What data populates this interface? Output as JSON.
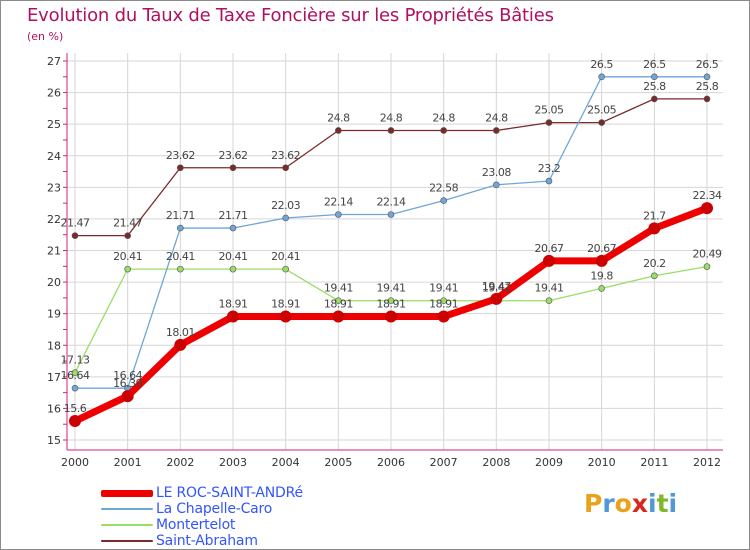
{
  "title": "Evolution du Taux de Taxe Foncière sur les Propriétés Bâties",
  "unit_label": "(en %)",
  "brand": {
    "letters": [
      "P",
      "r",
      "o",
      "x",
      "i",
      "t",
      "i"
    ],
    "colors": [
      "#e9a21b",
      "#4e9ad8",
      "#e9a21b",
      "#d6281e",
      "#4e9ad8",
      "#80b82a",
      "#4e9ad8"
    ]
  },
  "chart_data": {
    "type": "line",
    "title": "Evolution du Taux de Taxe Foncière sur les Propriétés Bâties",
    "ylabel": "(en %)",
    "xlabel": "",
    "x": [
      "2000",
      "2001",
      "2002",
      "2003",
      "2004",
      "2005",
      "2006",
      "2007",
      "2008",
      "2009",
      "2010",
      "2011",
      "2012"
    ],
    "ylim": [
      15,
      27
    ],
    "yticks": [
      "15",
      "16",
      "17",
      "18",
      "19",
      "20",
      "21",
      "22",
      "23",
      "24",
      "25",
      "26",
      "27"
    ],
    "grid": true,
    "series": [
      {
        "name": "LE ROC-SAINT-ANDRé",
        "color": "#ee0000",
        "width": 7,
        "marker": 6,
        "values": [
          15.6,
          16.39,
          18.01,
          18.91,
          18.91,
          18.91,
          18.91,
          18.91,
          19.47,
          20.67,
          20.67,
          21.7,
          22.34
        ],
        "labels": [
          "15.6",
          "16.39",
          "18.01",
          "18.91",
          "18.91",
          "18.91",
          "18.91",
          "18.91",
          "19.47",
          "20.67",
          "20.67",
          "21.7",
          "22.34"
        ]
      },
      {
        "name": "La Chapelle-Caro",
        "color": "#6fa6d8",
        "width": 1.3,
        "marker": 3,
        "values": [
          16.64,
          16.64,
          21.71,
          21.71,
          22.03,
          22.14,
          22.14,
          22.58,
          23.08,
          23.2,
          26.5,
          26.5,
          26.5
        ],
        "labels": [
          "16.64",
          "16.64",
          "21.71",
          "21.71",
          "22.03",
          "22.14",
          "22.14",
          "22.58",
          "23.08",
          "23.2",
          "26.5",
          "26.5",
          "26.5"
        ]
      },
      {
        "name": "Montertelot",
        "color": "#99dd66",
        "width": 1.3,
        "marker": 3,
        "values": [
          17.13,
          20.41,
          20.41,
          20.41,
          20.41,
          19.41,
          19.41,
          19.41,
          19.41,
          19.41,
          19.8,
          20.2,
          20.49
        ],
        "labels": [
          "17.13",
          "20.41",
          "20.41",
          "20.41",
          "20.41",
          "19.41",
          "19.41",
          "19.41",
          "19.41",
          "19.41",
          "19.8",
          "20.2",
          "20.49"
        ]
      },
      {
        "name": "Saint-Abraham",
        "color": "#7a2a2a",
        "width": 1.3,
        "marker": 3,
        "values": [
          21.47,
          21.47,
          23.62,
          23.62,
          23.62,
          24.8,
          24.8,
          24.8,
          24.8,
          25.05,
          25.05,
          25.8,
          25.8
        ],
        "labels": [
          "21.47",
          "21.47",
          "23.62",
          "23.62",
          "23.62",
          "24.8",
          "24.8",
          "24.8",
          "24.8",
          "25.05",
          "25.05",
          "25.8",
          "25.8"
        ]
      }
    ]
  }
}
